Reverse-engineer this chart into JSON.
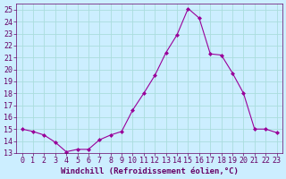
{
  "x": [
    0,
    1,
    2,
    3,
    4,
    5,
    6,
    7,
    8,
    9,
    10,
    11,
    12,
    13,
    14,
    15,
    16,
    17,
    18,
    19,
    20,
    21,
    22,
    23
  ],
  "y": [
    15.0,
    14.8,
    14.5,
    13.9,
    13.1,
    13.3,
    13.3,
    14.1,
    14.5,
    14.8,
    16.6,
    18.0,
    19.5,
    21.4,
    22.9,
    25.1,
    24.3,
    21.3,
    21.2,
    19.7,
    18.0,
    15.0,
    15.0,
    14.7
  ],
  "line_color": "#990099",
  "marker": "D",
  "marker_size": 2.0,
  "linewidth": 0.8,
  "xlabel": "Windchill (Refroidissement éolien,°C)",
  "xlabel_fontsize": 6.5,
  "xlim": [
    -0.5,
    23.5
  ],
  "ylim": [
    13,
    25.5
  ],
  "yticks": [
    13,
    14,
    15,
    16,
    17,
    18,
    19,
    20,
    21,
    22,
    23,
    24,
    25
  ],
  "xticks": [
    0,
    1,
    2,
    3,
    4,
    5,
    6,
    7,
    8,
    9,
    10,
    11,
    12,
    13,
    14,
    15,
    16,
    17,
    18,
    19,
    20,
    21,
    22,
    23
  ],
  "tick_fontsize": 6.0,
  "label_color": "#660066",
  "background_color": "#cceeff",
  "grid_color": "#aadddd",
  "fig_bg": "#cceeff"
}
